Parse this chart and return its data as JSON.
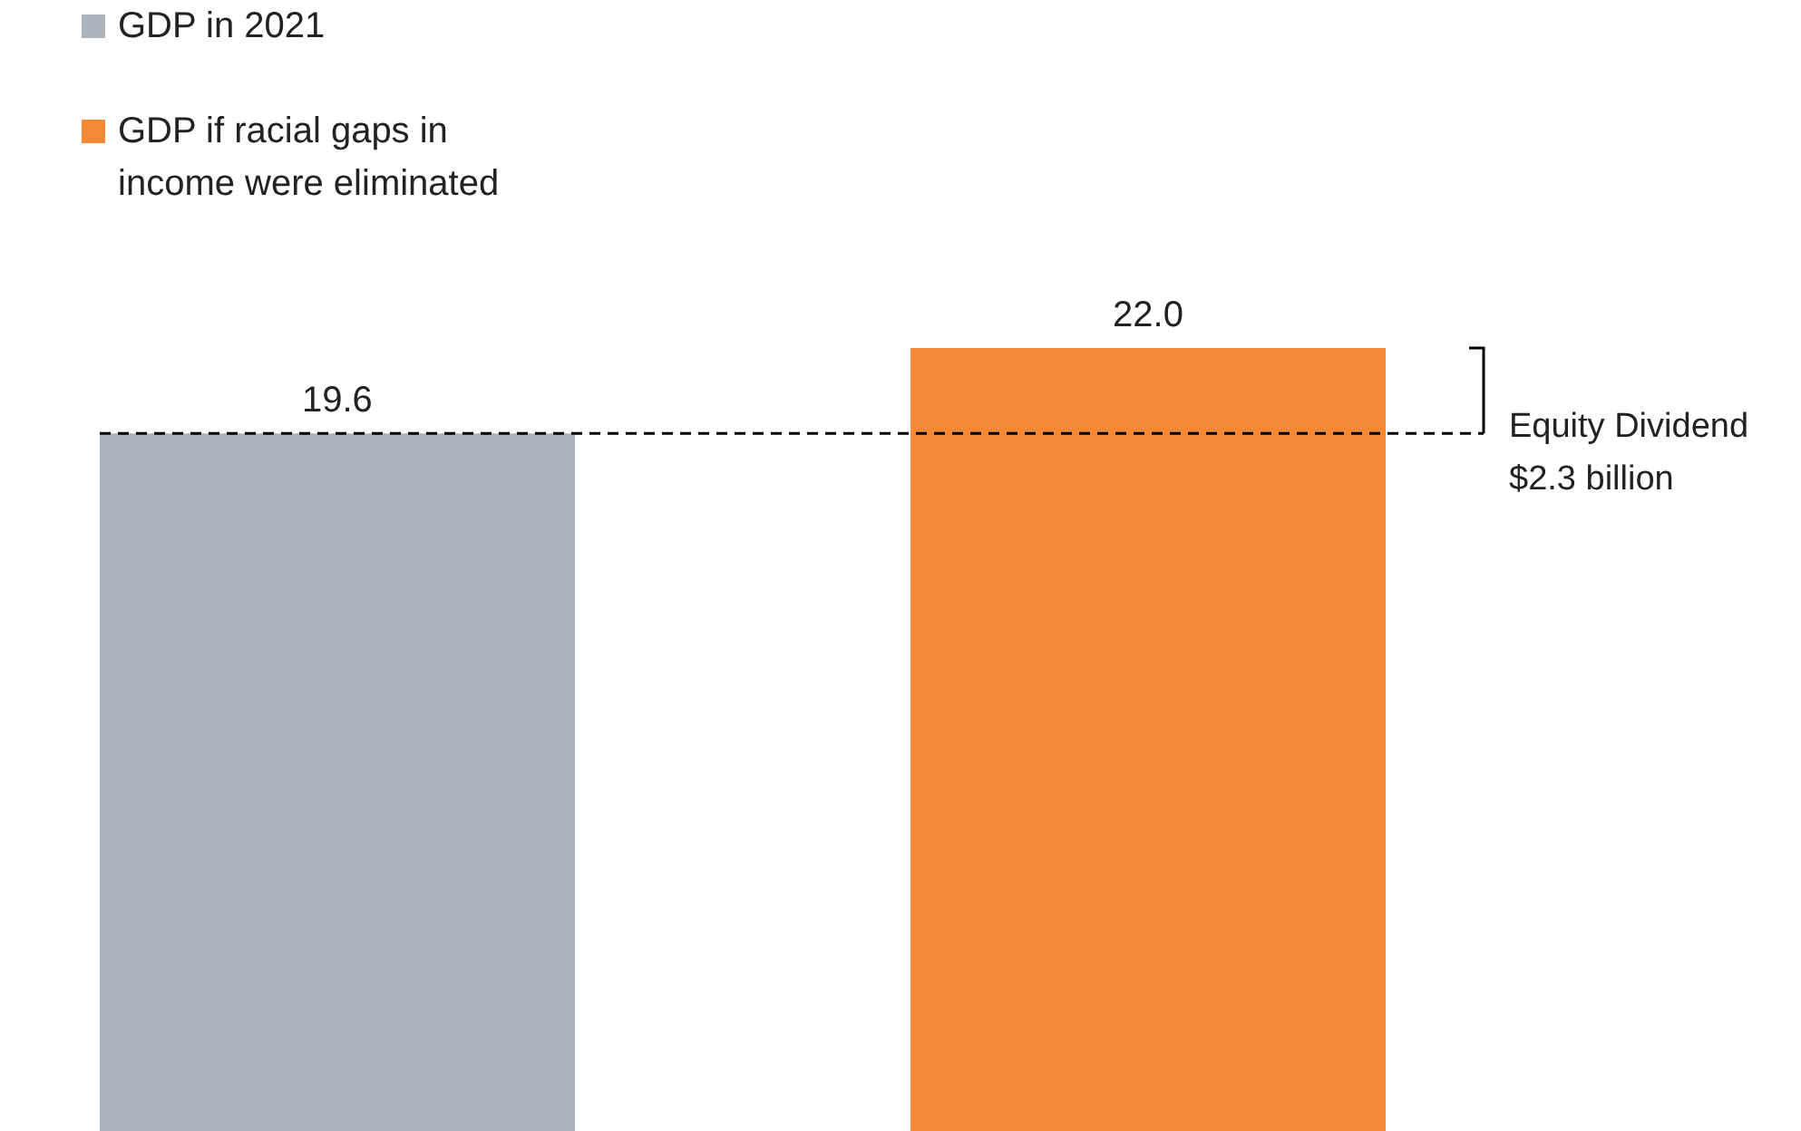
{
  "chart_data": {
    "type": "bar",
    "categories": [
      null,
      null
    ],
    "stacked": true,
    "series": [
      {
        "name": "GDP in 2021",
        "color": "#abb4bd",
        "values": [
          19.6,
          null
        ],
        "value_labels": [
          "19.6",
          null
        ]
      },
      {
        "name": "GDP if racial gaps in income were eliminated",
        "color": "#f28a35",
        "values": [
          null,
          22.0
        ],
        "value_labels": [
          null,
          "22.0"
        ]
      }
    ],
    "legend": "top left",
    "ref_lines": [
      {
        "axis": "y",
        "value": 19.6,
        "line_style": "dashed",
        "color": "#000000"
      }
    ],
    "annotations": [
      "Equity Dividend\n$2.3 billion"
    ]
  }
}
